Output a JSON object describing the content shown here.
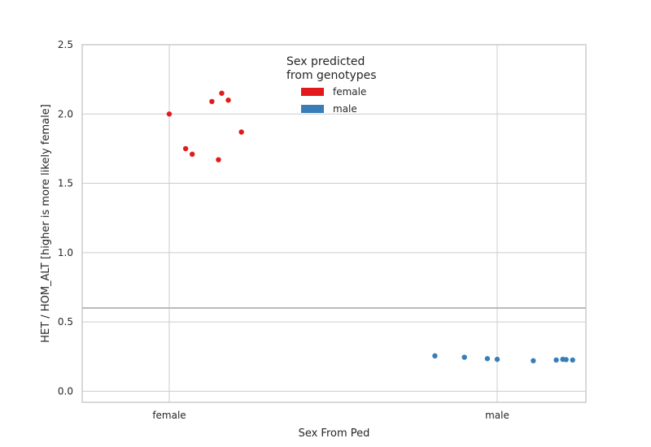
{
  "chart_data": {
    "type": "scatter",
    "xlabel": "Sex From Ped",
    "ylabel": "HET / HOM_ALT [higher is more likely female]",
    "categories": [
      "female",
      "male"
    ],
    "ylim": [
      -0.08,
      2.5
    ],
    "yticks": [
      "0.0",
      "0.5",
      "1.0",
      "1.5",
      "2.0",
      "2.5"
    ],
    "grid": true,
    "threshold_line": 0.6,
    "legend": {
      "title_lines": [
        "Sex predicted",
        "from genotypes"
      ],
      "placement": "top-center"
    },
    "series": [
      {
        "name": "female",
        "color": "#e31a1c",
        "points": [
          {
            "x": "female",
            "jitter": 0.0,
            "y": 2.0
          },
          {
            "x": "female",
            "jitter": 0.05,
            "y": 1.75
          },
          {
            "x": "female",
            "jitter": 0.07,
            "y": 1.71
          },
          {
            "x": "female",
            "jitter": 0.13,
            "y": 2.09
          },
          {
            "x": "female",
            "jitter": 0.15,
            "y": 1.67
          },
          {
            "x": "female",
            "jitter": 0.16,
            "y": 2.15
          },
          {
            "x": "female",
            "jitter": 0.18,
            "y": 2.1
          },
          {
            "x": "female",
            "jitter": 0.22,
            "y": 1.87
          }
        ]
      },
      {
        "name": "male",
        "color": "#377eb8",
        "points": [
          {
            "x": "male",
            "jitter": -0.19,
            "y": 0.255
          },
          {
            "x": "male",
            "jitter": -0.1,
            "y": 0.245
          },
          {
            "x": "male",
            "jitter": -0.03,
            "y": 0.235
          },
          {
            "x": "male",
            "jitter": 0.0,
            "y": 0.23
          },
          {
            "x": "male",
            "jitter": 0.11,
            "y": 0.22
          },
          {
            "x": "male",
            "jitter": 0.18,
            "y": 0.225
          },
          {
            "x": "male",
            "jitter": 0.2,
            "y": 0.23
          },
          {
            "x": "male",
            "jitter": 0.21,
            "y": 0.228
          },
          {
            "x": "male",
            "jitter": 0.23,
            "y": 0.225
          }
        ]
      }
    ]
  }
}
